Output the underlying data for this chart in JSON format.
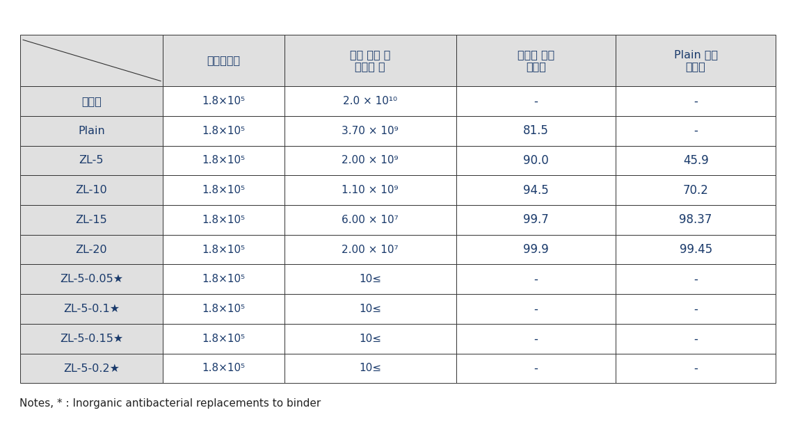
{
  "header_bg": "#e0e0e0",
  "row_label_bg": "#e0e0e0",
  "row_bg": "#ffffff",
  "border_color": "#333333",
  "header_text_color": "#1a3a6b",
  "data_text_color": "#1a3a6b",
  "note_text_color": "#222222",
  "col_headers": [
    "최초접종균",
    "시료 접종 후\n배양균 수",
    "대조군 대비\n감소율",
    "Plain 대비\n감소율"
  ],
  "row_labels": [
    "대조군",
    "Plain",
    "ZL-5",
    "ZL-10",
    "ZL-15",
    "ZL-20",
    "ZL-5-0.05★",
    "ZL-5-0.1★",
    "ZL-5-0.15★",
    "ZL-5-0.2★"
  ],
  "col1": [
    "1.8×10⁵",
    "1.8×10⁵",
    "1.8×10⁵",
    "1.8×10⁵",
    "1.8×10⁵",
    "1.8×10⁵",
    "1.8×10⁵",
    "1.8×10⁵",
    "1.8×10⁵",
    "1.8×10⁵"
  ],
  "col2": [
    "2.0 × 10¹⁰",
    "3.70 × 10⁹",
    "2.00 × 10⁹",
    "1.10 × 10⁹",
    "6.00 × 10⁷",
    "2.00 × 10⁷",
    "10≤",
    "10≤",
    "10≤",
    "10≤"
  ],
  "col3": [
    "-",
    "81.5",
    "90.0",
    "94.5",
    "99.7",
    "99.9",
    "-",
    "-",
    "-",
    "-"
  ],
  "col4": [
    "-",
    "-",
    "45.9",
    "70.2",
    "98.37",
    "99.45",
    "-",
    "-",
    "-",
    "-"
  ],
  "note": "Notes, * : Inorganic antibacterial replacements to binder",
  "fig_width": 11.4,
  "fig_height": 6.23,
  "dpi": 100
}
